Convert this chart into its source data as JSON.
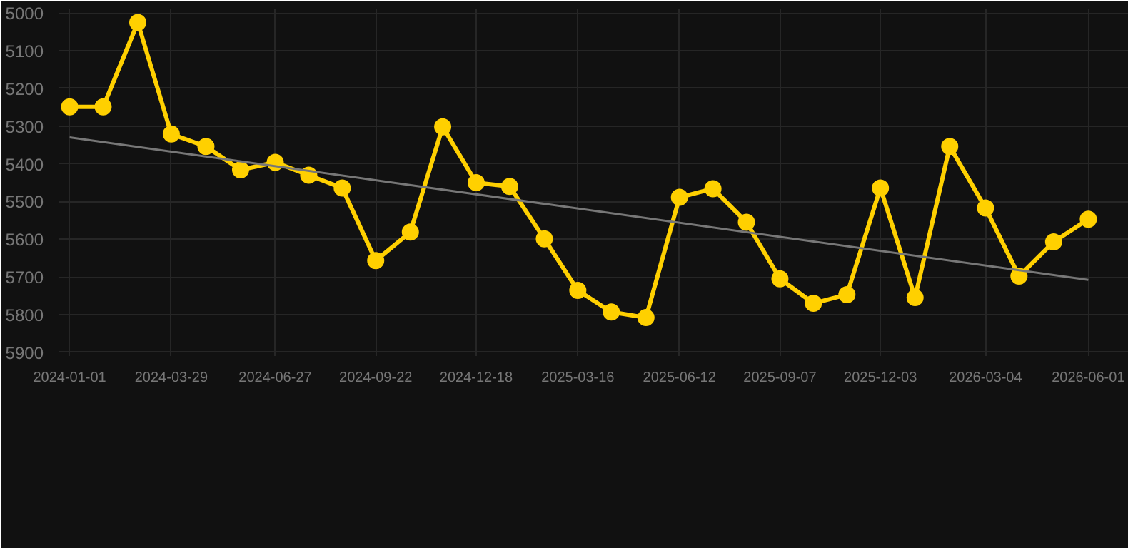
{
  "chart_data": {
    "type": "line",
    "x": [
      "2024-01-01",
      "2024-01-30",
      "2024-02-29",
      "2024-03-29",
      "2024-04-28",
      "2024-05-28",
      "2024-06-27",
      "2024-07-26",
      "2024-08-24",
      "2024-09-22",
      "2024-10-22",
      "2024-11-19",
      "2024-12-18",
      "2025-01-16",
      "2025-02-15",
      "2025-03-16",
      "2025-04-14",
      "2025-05-14",
      "2025-06-12",
      "2025-07-11",
      "2025-08-09",
      "2025-09-07",
      "2025-10-06",
      "2025-11-04",
      "2025-12-03",
      "2026-01-02",
      "2026-02-01",
      "2026-03-04",
      "2026-04-02",
      "2026-05-02",
      "2026-06-01"
    ],
    "series": [
      {
        "color": "#ffd000",
        "marker": "circle",
        "values": [
          5249,
          5249,
          5025,
          5321,
          5354,
          5416,
          5396,
          5430,
          5464,
          5657,
          5581,
          5302,
          5450,
          5460,
          5599,
          5736,
          5793,
          5808,
          5489,
          5466,
          5555,
          5705,
          5770,
          5747,
          5464,
          5755,
          5354,
          5517,
          5698,
          5607,
          5547
        ]
      },
      {
        "type": "line",
        "color": "#777777",
        "marker": "none",
        "x": [
          "2024-01-01",
          "2026-06-01"
        ],
        "values": [
          5330,
          5708
        ]
      }
    ],
    "xlim": [
      "2023-12-23",
      "2026-07-06"
    ],
    "ylim": [
      5910,
      4990
    ],
    "xticks": [
      {
        "value": "2024-01-01",
        "label": "2024-01-01"
      },
      {
        "value": "2024-03-29",
        "label": "2024-03-29"
      },
      {
        "value": "2024-06-27",
        "label": "2024-06-27"
      },
      {
        "value": "2024-09-22",
        "label": "2024-09-22"
      },
      {
        "value": "2024-12-18",
        "label": "2024-12-18"
      },
      {
        "value": "2025-03-16",
        "label": "2025-03-16"
      },
      {
        "value": "2025-06-12",
        "label": "2025-06-12"
      },
      {
        "value": "2025-09-07",
        "label": "2025-09-07"
      },
      {
        "value": "2025-12-03",
        "label": "2025-12-03"
      },
      {
        "value": "2026-03-04",
        "label": "2026-03-04"
      },
      {
        "value": "2026-06-01",
        "label": "2026-06-01"
      }
    ],
    "yticks": [
      5000,
      5100,
      5200,
      5300,
      5400,
      5500,
      5600,
      5700,
      5800,
      5900
    ],
    "grid": true
  }
}
